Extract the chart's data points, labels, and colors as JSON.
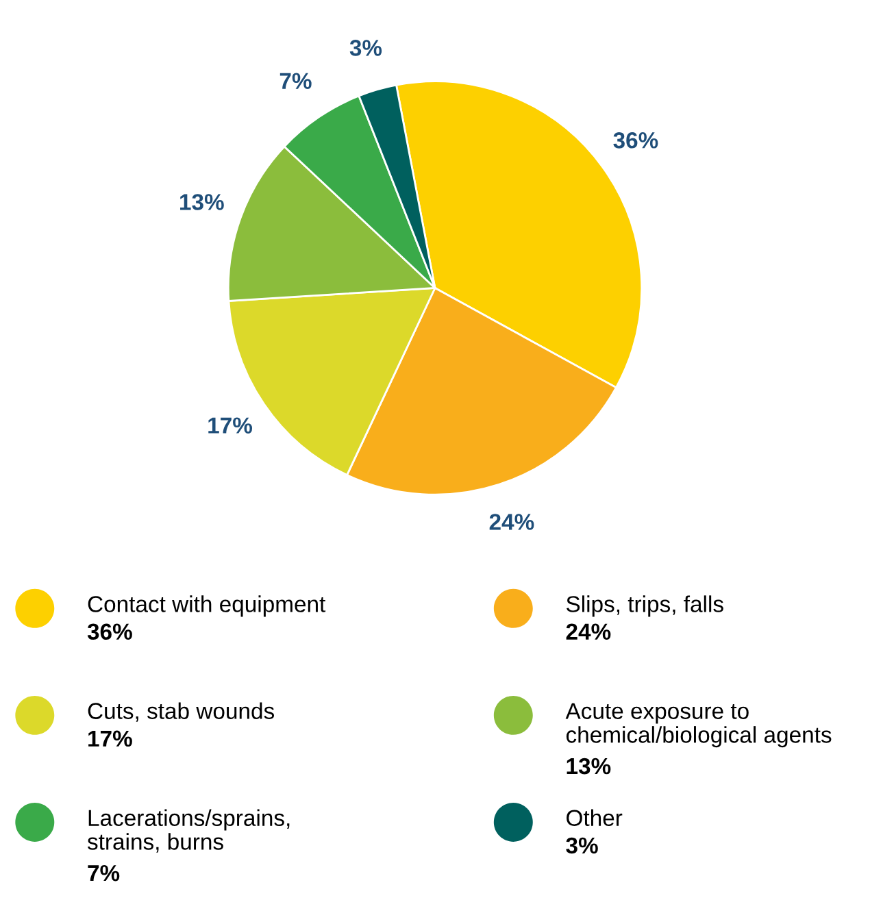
{
  "chart_data": {
    "type": "pie",
    "categories": [
      "Contact with equipment",
      "Slips, trips, falls",
      "Cuts, stab wounds",
      "Acute exposure to\nchemical/biological agents",
      "Lacerations/sprains,\nstrains, burns",
      "Other"
    ],
    "values": [
      36,
      24,
      17,
      13,
      7,
      3
    ],
    "colors": [
      "#fdd000",
      "#f9ae1b",
      "#dcd92a",
      "#8bbd3c",
      "#3aaa49",
      "#00605e"
    ],
    "value_labels": [
      "36%",
      "24%",
      "17%",
      "13%",
      "7%",
      "3%"
    ],
    "legend": "bottom"
  }
}
